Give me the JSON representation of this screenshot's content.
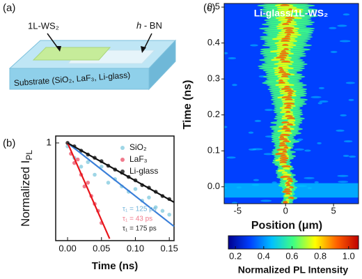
{
  "panel_a": {
    "label": "(a)",
    "flake_label": "1L-WS₂",
    "hbn_label_italic": "h",
    "hbn_label_rest": " - BN",
    "substrate_label": "Substrate (SiO₂, LaF₃, Li-glass)"
  },
  "chart_data": [
    {
      "type": "scatter",
      "panel_label": "(b)",
      "xlabel": "Time (ns)",
      "ylabel": "Normalized I",
      "ylabel_subscript": "PL",
      "xlim": [
        -0.0175,
        0.157
      ],
      "xticks": [
        {
          "value": 0,
          "label": "0.00"
        },
        0.05,
        {
          "value": 0.1,
          "label": "0.10"
        },
        0.15
      ],
      "ylim": [
        0.23,
        1.11
      ],
      "yticks": [
        1
      ],
      "log_y": true,
      "legend": "upper right",
      "series": [
        {
          "name": "SiO₂",
          "color": "#9fd6e6",
          "x": [
            0,
            0.01,
            0.02,
            0.03,
            0.04,
            0.05,
            0.06,
            0.07,
            0.08,
            0.09,
            0.1,
            0.11,
            0.12,
            0.13,
            0.14,
            0.15
          ],
          "values": [
            0.95,
            0.8,
            0.7,
            0.75,
            0.62,
            0.7,
            0.55,
            0.58,
            0.52,
            0.48,
            0.5,
            0.42,
            0.44,
            0.38,
            0.36,
            0.34
          ]
        },
        {
          "name": "LaF₃",
          "color": "#f07a8c",
          "x": [
            0,
            0.005,
            0.01,
            0.015,
            0.02,
            0.025,
            0.03,
            0.035,
            0.04,
            0.045,
            0.05
          ],
          "values": [
            1.0,
            0.85,
            0.74,
            0.78,
            0.62,
            0.52,
            0.55,
            0.45,
            0.4,
            0.36,
            0.3
          ]
        },
        {
          "name": "Li-glass",
          "color": "#444444",
          "x": [
            0,
            0.01,
            0.02,
            0.03,
            0.04,
            0.05,
            0.06,
            0.07,
            0.08,
            0.09,
            0.1,
            0.11,
            0.12,
            0.13,
            0.14,
            0.15
          ],
          "values": [
            1.0,
            0.95,
            0.89,
            0.84,
            0.8,
            0.76,
            0.71,
            0.67,
            0.64,
            0.6,
            0.57,
            0.53,
            0.51,
            0.48,
            0.45,
            0.43
          ]
        }
      ],
      "fits": [
        {
          "color": "#3a7fd9",
          "x": [
            0,
            0.157
          ],
          "values": [
            1,
            0.285
          ]
        },
        {
          "color": "#e8151b",
          "x": [
            0,
            0.062
          ],
          "values": [
            1,
            0.237
          ]
        },
        {
          "color": "#111111",
          "x": [
            0,
            0.157
          ],
          "values": [
            1,
            0.41
          ]
        }
      ],
      "annotations": [
        {
          "text": "τ₁ = 125 ps",
          "color": "#6fb3d9"
        },
        {
          "text": "τ₁ = 43 ps",
          "color": "#f07a8c"
        },
        {
          "text": "τ₁ = 175 ps",
          "color": "#222222"
        }
      ]
    },
    {
      "type": "heatmap",
      "panel_label": "(c)",
      "title": "Li-glass/1L-WS₂",
      "xlabel": "Position (μm)",
      "ylabel": "Time (ns)",
      "xlim": [
        -6.4,
        7.6
      ],
      "xticks": [
        -5,
        0,
        5
      ],
      "ylim": [
        -0.047,
        0.51
      ],
      "yticks": [
        {
          "value": 0,
          "label": "0.0"
        },
        0.1,
        0.2,
        0.3,
        0.4,
        0.5
      ],
      "colorbar_label": "Normalized PL Intensity",
      "clim": [
        0.15,
        1.07
      ],
      "colorbar_ticks": [
        0.2,
        0.4,
        0.6,
        0.8,
        {
          "value": 1,
          "label": "1.0"
        }
      ],
      "colormap": [
        "#00008f",
        "#0040ff",
        "#00c0ff",
        "#40ff80",
        "#ffff00",
        "#ff6000",
        "#c00000"
      ]
    }
  ]
}
